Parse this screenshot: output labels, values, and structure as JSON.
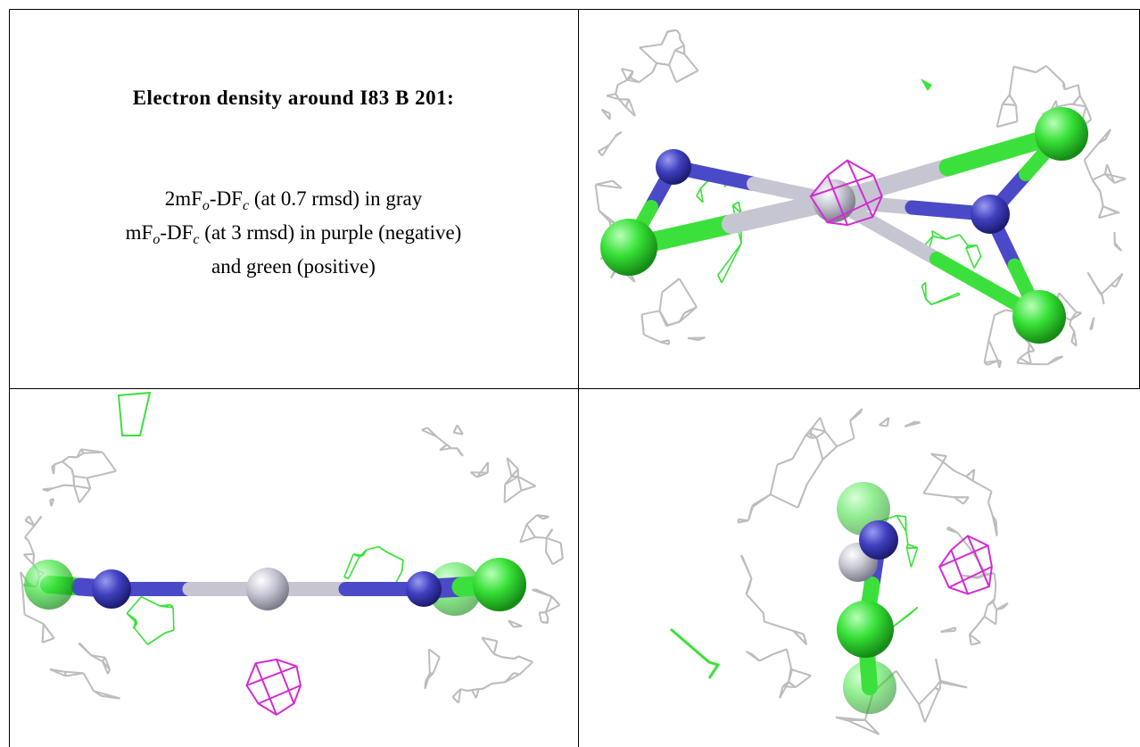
{
  "caption": {
    "title": "Electron density around I83 B 201:",
    "lines": [
      [
        "2mF",
        "o",
        "-DF",
        "c",
        " (at 0.7 rmsd) in gray"
      ],
      [
        "mF",
        "o",
        "-DF",
        "c",
        " (at 3 rmsd) in purple (negative)"
      ],
      [
        "and green (positive)"
      ]
    ]
  }
}
